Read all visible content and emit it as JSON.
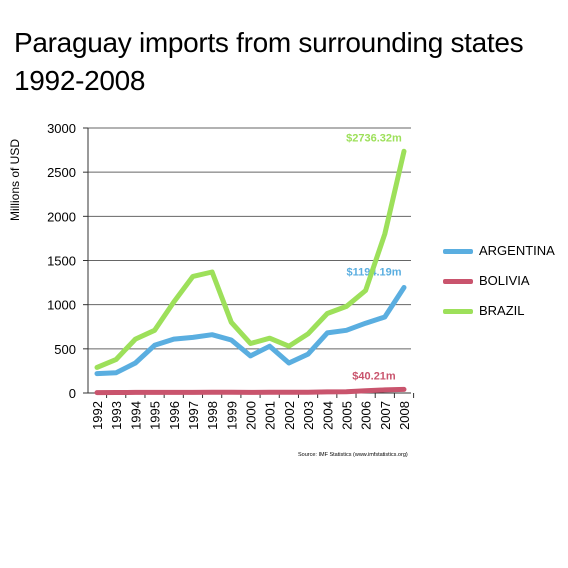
{
  "title": "Paraguay imports from surrounding states 1992-2008",
  "ylabel": "Millions of USD",
  "source": "Source: IMF Statistics (www.imfstatistics.org)",
  "colors": {
    "argentina": "#5aaee0",
    "bolivia": "#c9546d",
    "brazil": "#9de05a",
    "grid": "#666666"
  },
  "chart_data": {
    "type": "line",
    "title": "Paraguay imports from surrounding states 1992-2008",
    "xlabel": "",
    "ylabel": "Millions of USD",
    "ylim": [
      0,
      3000
    ],
    "yticks": [
      "0",
      "500",
      "1000",
      "1500",
      "2000",
      "2500",
      "3000"
    ],
    "x": [
      "1992",
      "1993",
      "1994",
      "1995",
      "1996",
      "1997",
      "1998",
      "1999",
      "2000",
      "2001",
      "2002",
      "2003",
      "2004",
      "2005",
      "2006",
      "2007",
      "2008"
    ],
    "grid": true,
    "legend": "right",
    "series": [
      {
        "name": "ARGENTINA",
        "color": "#5aaee0",
        "values": [
          220,
          230,
          340,
          540,
          610,
          630,
          660,
          600,
          420,
          530,
          340,
          440,
          680,
          710,
          790,
          860,
          1194.19
        ],
        "end_label": "$1194.19m"
      },
      {
        "name": "BOLIVIA",
        "color": "#c9546d",
        "values": [
          5,
          6,
          7,
          7,
          7,
          7,
          8,
          8,
          7,
          8,
          8,
          9,
          12,
          15,
          25,
          35,
          40.21
        ],
        "end_label": "$40.21m"
      },
      {
        "name": "BRAZIL",
        "color": "#9de05a",
        "values": [
          290,
          380,
          610,
          710,
          1030,
          1320,
          1370,
          800,
          560,
          620,
          530,
          670,
          900,
          980,
          1160,
          1800,
          2736.32
        ],
        "end_label": "$2736.32m"
      }
    ]
  }
}
